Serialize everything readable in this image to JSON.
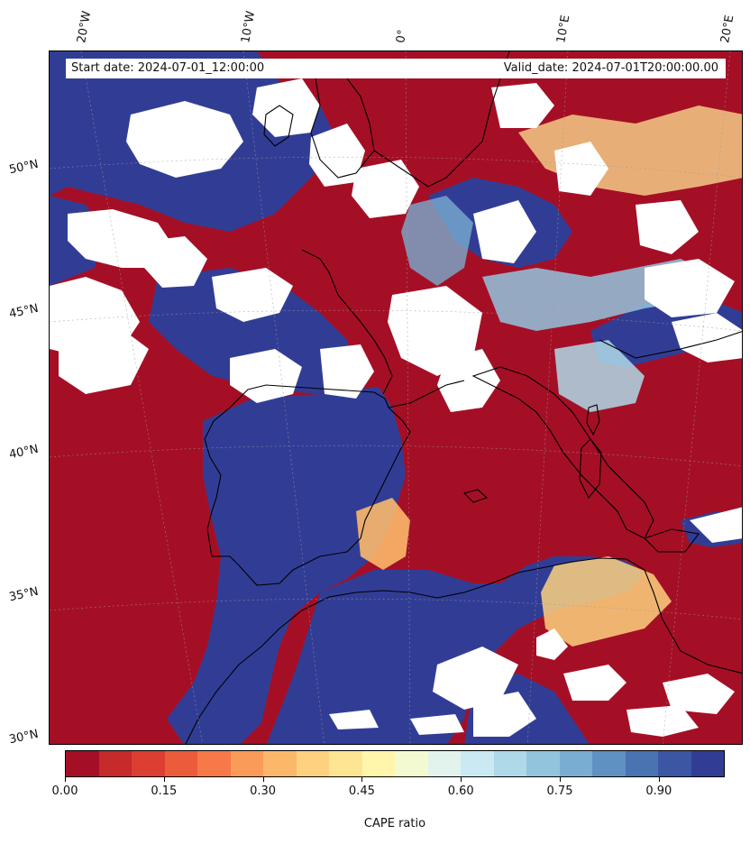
{
  "map": {
    "start_date": "Start date: 2024-07-01_12:00:00",
    "valid_date": "Valid_date: 2024-07-01T20:00:00.00",
    "lon_labels": [
      "20°W",
      "10°W",
      "0°",
      "10°E",
      "20°E"
    ],
    "lat_labels": [
      "50°N",
      "45°N",
      "40°N",
      "35°N",
      "30°N"
    ],
    "field": "CAPE ratio",
    "colors": {
      "low": "#a50f26",
      "high": "#313d95",
      "missing": "#ffffff"
    }
  },
  "colorbar": {
    "label": "CAPE ratio",
    "ticks": [
      "0.00",
      "0.15",
      "0.30",
      "0.45",
      "0.60",
      "0.75",
      "0.90"
    ],
    "colors": [
      "#a50f26",
      "#c62a2b",
      "#dc3e31",
      "#ec5c3b",
      "#f7794a",
      "#fb9b5a",
      "#fcb86a",
      "#fdd17f",
      "#fee593",
      "#fff6ab",
      "#f3fad2",
      "#e1f3ec",
      "#cae9f2",
      "#afd9e9",
      "#93c4de",
      "#79add1",
      "#5f91c2",
      "#4a73b2",
      "#3d56a4",
      "#313d95"
    ]
  }
}
